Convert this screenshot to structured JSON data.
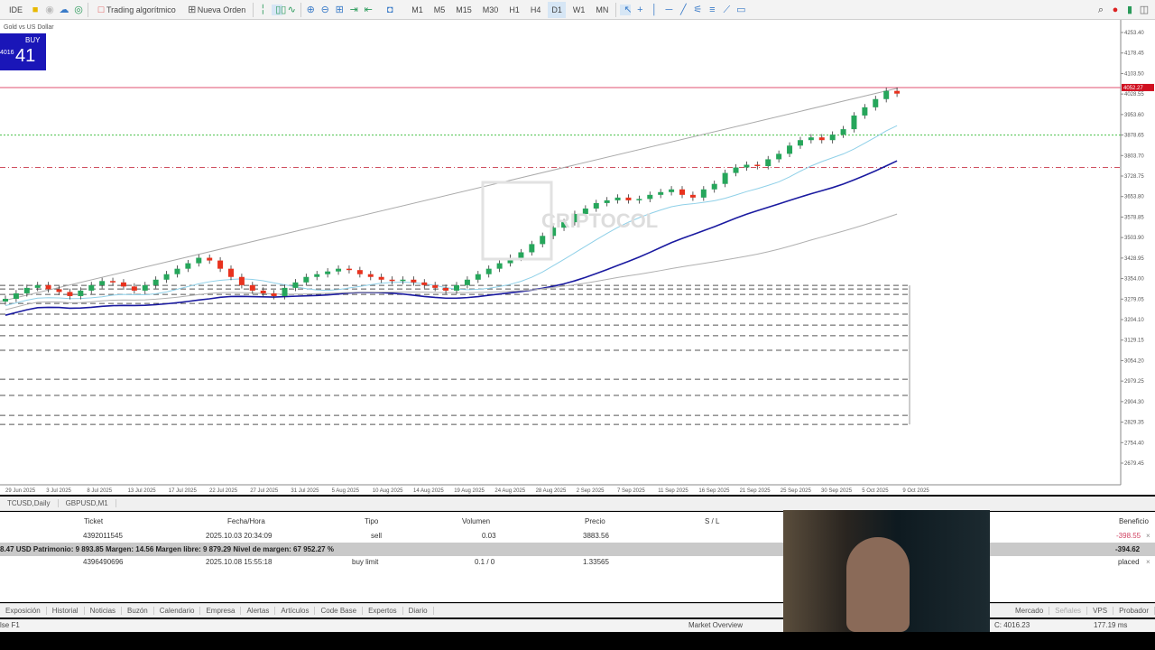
{
  "toolbar": {
    "items": [
      "IDE",
      "Trading algorítmico",
      "Nueva Orden"
    ],
    "timeframes": [
      "M1",
      "M5",
      "M15",
      "M30",
      "H1",
      "H4",
      "D1",
      "W1",
      "MN"
    ],
    "active_timeframe": "D1"
  },
  "chart": {
    "symbol_label": "Gold vs US Dollar",
    "buy_label": "BUY",
    "price_small": "4016",
    "price_big": "41",
    "watermark": "CRIPTOCOL"
  },
  "chart_data": {
    "type": "candlestick",
    "y_ticks": [
      "4253.40",
      "4178.45",
      "4103.50",
      "4028.55",
      "3953.60",
      "3878.65",
      "3803.70",
      "3728.75",
      "3653.80",
      "3578.85",
      "3503.90",
      "3428.95",
      "3354.00",
      "3279.05",
      "3204.10",
      "3129.15",
      "3054.20",
      "2979.25",
      "2904.30",
      "2829.35",
      "2754.40",
      "2679.45"
    ],
    "ylim": [
      2679.45,
      4253.4
    ],
    "x_ticks": [
      "29 Jun 2025",
      "3 Jul 2025",
      "8 Jul 2025",
      "13 Jul 2025",
      "17 Jul 2025",
      "22 Jul 2025",
      "27 Jul 2025",
      "31 Jul 2025",
      "5 Aug 2025",
      "10 Aug 2025",
      "14 Aug 2025",
      "19 Aug 2025",
      "24 Aug 2025",
      "28 Aug 2025",
      "2 Sep 2025",
      "7 Sep 2025",
      "11 Sep 2025",
      "16 Sep 2025",
      "21 Sep 2025",
      "25 Sep 2025",
      "30 Sep 2025",
      "5 Oct 2025",
      "9 Oct 2025"
    ],
    "closes": [
      3280,
      3300,
      3320,
      3330,
      3315,
      3305,
      3290,
      3310,
      3330,
      3345,
      3340,
      3325,
      3310,
      3330,
      3350,
      3370,
      3390,
      3410,
      3430,
      3420,
      3390,
      3360,
      3330,
      3310,
      3300,
      3290,
      3320,
      3340,
      3360,
      3370,
      3380,
      3390,
      3385,
      3370,
      3360,
      3350,
      3345,
      3350,
      3340,
      3330,
      3320,
      3310,
      3330,
      3350,
      3370,
      3390,
      3410,
      3430,
      3450,
      3480,
      3510,
      3540,
      3560,
      3590,
      3610,
      3630,
      3640,
      3650,
      3640,
      3645,
      3660,
      3670,
      3680,
      3660,
      3650,
      3680,
      3700,
      3740,
      3760,
      3770,
      3765,
      3790,
      3810,
      3840,
      3860,
      3870,
      3860,
      3880,
      3900,
      3950,
      3980,
      4010,
      4040,
      4030
    ],
    "current_price": "4052.27",
    "levels": {
      "current": 4052.27,
      "green": 3878.65,
      "red_dashdot": 3760,
      "dashed": [
        3329,
        3316,
        3296,
        3263,
        3224,
        3184,
        3145,
        3092,
        2986,
        2927,
        2854,
        2821
      ]
    },
    "colors": {
      "up": "#26a65b",
      "down": "#e8321e",
      "ma_fast": "#8fd0e8",
      "ma_mid": "#1a1aa0",
      "ma_slow": "#b0b0b0"
    }
  },
  "tabs": [
    "TCUSD,Daily",
    "GBPUSD,M1"
  ],
  "table": {
    "headers": [
      "Ticket",
      "Fecha/Hora",
      "Tipo",
      "Volumen",
      "Precio",
      "S / L",
      "Beneficio"
    ],
    "rows": [
      [
        "4392011545",
        "2025.10.03 20:34:09",
        "sell",
        "0.03",
        "3883.56",
        "",
        "-398.55"
      ],
      [
        "4396490696",
        "2025.10.08 15:55:18",
        "buy limit",
        "0.1 / 0",
        "1.33565",
        "",
        "placed"
      ]
    ],
    "summary": "8.47 USD  Patrimonio: 9 893.85  Margen: 14.56  Margen libre: 9 879.29  Nivel de margen: 67 952.27 %",
    "summary_profit": "-394.62"
  },
  "bottom_tabs": [
    "Exposición",
    "Historial",
    "Noticias",
    "Buzón",
    "Calendario",
    "Empresa",
    "Alertas",
    "Artículos",
    "Code Base",
    "Expertos",
    "Diario"
  ],
  "bottom_right": [
    "Mercado",
    "Señales",
    "VPS",
    "Probador"
  ],
  "status": {
    "help": "lse F1",
    "market": "Market Overview",
    "price": "C: 4016.23",
    "ping": "177.19 ms"
  }
}
